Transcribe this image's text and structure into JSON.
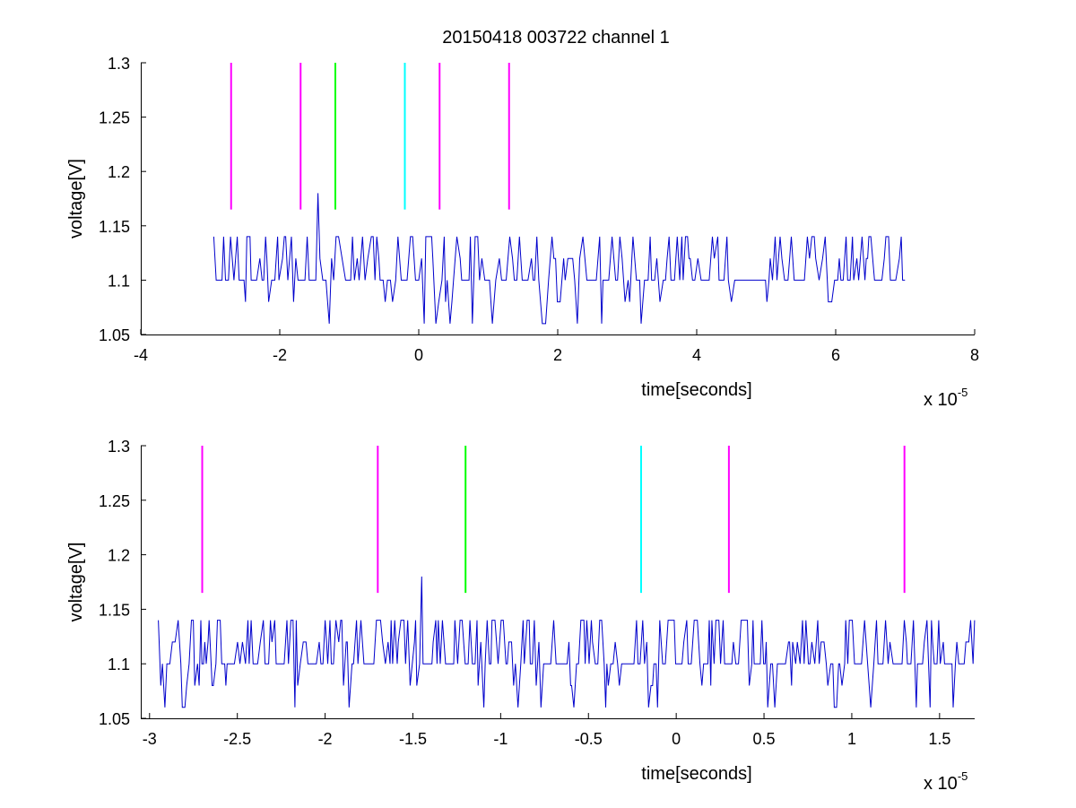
{
  "figure": {
    "title": "20150418 003722 channel 1"
  },
  "chart_data": [
    {
      "type": "line",
      "title": "20150418 003722 channel 1",
      "xlabel": "time[seconds]",
      "ylabel": "voltage[V]",
      "x_multiplier_label": "x 10",
      "x_multiplier_exponent": "-5",
      "xlim": [
        -4,
        8
      ],
      "ylim": [
        1.05,
        1.3
      ],
      "xticks": [
        -4,
        -2,
        0,
        2,
        4,
        6,
        8
      ],
      "xtick_labels": [
        "-4",
        "-2",
        "0",
        "2",
        "4",
        "6",
        "8"
      ],
      "yticks": [
        1.05,
        1.1,
        1.15,
        1.2,
        1.25,
        1.3
      ],
      "ytick_labels": [
        "1.05",
        "1.1",
        "1.15",
        "1.2",
        "1.25",
        "1.3"
      ],
      "grid": false,
      "signal": {
        "color": "#0000cc",
        "x_range": [
          -2.95,
          7.0
        ],
        "levels": [
          1.06,
          1.08,
          1.1,
          1.12,
          1.14
        ],
        "baseline": 1.1,
        "peak": {
          "x": -1.45,
          "y": 1.18
        }
      },
      "markers": [
        {
          "x": -2.7,
          "y0": 1.165,
          "y1": 1.3,
          "color": "#ff00ff"
        },
        {
          "x": -1.7,
          "y0": 1.165,
          "y1": 1.3,
          "color": "#ff00ff"
        },
        {
          "x": -1.2,
          "y0": 1.165,
          "y1": 1.3,
          "color": "#00ff00"
        },
        {
          "x": -0.2,
          "y0": 1.165,
          "y1": 1.3,
          "color": "#00ffff"
        },
        {
          "x": 0.3,
          "y0": 1.165,
          "y1": 1.3,
          "color": "#ff00ff"
        },
        {
          "x": 1.3,
          "y0": 1.165,
          "y1": 1.3,
          "color": "#ff00ff"
        }
      ]
    },
    {
      "type": "line",
      "xlabel": "time[seconds]",
      "ylabel": "voltage[V]",
      "x_multiplier_label": "x 10",
      "x_multiplier_exponent": "-5",
      "xlim": [
        -3.05,
        1.7
      ],
      "ylim": [
        1.05,
        1.3
      ],
      "xticks": [
        -3,
        -2.5,
        -2,
        -1.5,
        -1,
        -0.5,
        0,
        0.5,
        1,
        1.5
      ],
      "xtick_labels": [
        "-3",
        "-2.5",
        "-2",
        "-1.5",
        "-1",
        "-0.5",
        "0",
        "0.5",
        "1",
        "1.5"
      ],
      "yticks": [
        1.05,
        1.1,
        1.15,
        1.2,
        1.25,
        1.3
      ],
      "ytick_labels": [
        "1.05",
        "1.1",
        "1.15",
        "1.2",
        "1.25",
        "1.3"
      ],
      "grid": false,
      "signal": {
        "color": "#0000cc",
        "x_range": [
          -2.95,
          1.7
        ],
        "levels": [
          1.06,
          1.08,
          1.1,
          1.12,
          1.14
        ],
        "baseline": 1.1,
        "peak": {
          "x": -1.45,
          "y": 1.18
        }
      },
      "markers": [
        {
          "x": -2.7,
          "y0": 1.165,
          "y1": 1.3,
          "color": "#ff00ff"
        },
        {
          "x": -1.7,
          "y0": 1.165,
          "y1": 1.3,
          "color": "#ff00ff"
        },
        {
          "x": -1.2,
          "y0": 1.165,
          "y1": 1.3,
          "color": "#00ff00"
        },
        {
          "x": -0.2,
          "y0": 1.165,
          "y1": 1.3,
          "color": "#00ffff"
        },
        {
          "x": 0.3,
          "y0": 1.165,
          "y1": 1.3,
          "color": "#ff00ff"
        },
        {
          "x": 1.3,
          "y0": 1.165,
          "y1": 1.3,
          "color": "#ff00ff"
        }
      ]
    }
  ]
}
